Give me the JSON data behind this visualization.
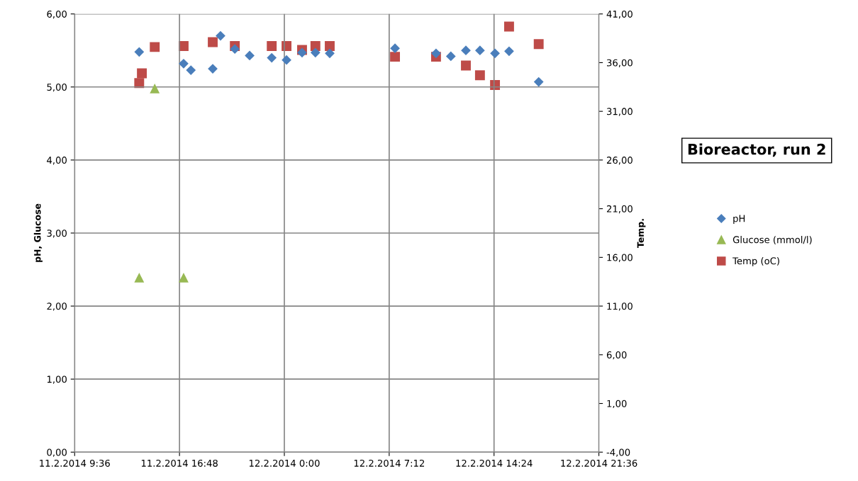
{
  "chart_data": {
    "type": "scatter",
    "title": "Bioreactor, run 2",
    "ylabel": "pH, Glucose",
    "y2label": "Temp.",
    "grid": true,
    "legend": "right",
    "xlim": [
      "2014-02-11T09:36",
      "2014-02-12T21:36"
    ],
    "xticks": [
      {
        "value": "2014-02-11T09:36",
        "label": "11.2.2014 9:36"
      },
      {
        "value": "2014-02-11T16:48",
        "label": "11.2.2014 16:48"
      },
      {
        "value": "2014-02-12T00:00",
        "label": "12.2.2014 0:00"
      },
      {
        "value": "2014-02-12T07:12",
        "label": "12.2.2014 7:12"
      },
      {
        "value": "2014-02-12T14:24",
        "label": "12.2.2014 14:24"
      },
      {
        "value": "2014-02-12T21:36",
        "label": "12.2.2014 21:36"
      }
    ],
    "ylim": [
      0,
      6
    ],
    "yticks": [
      {
        "value": 0,
        "label": "0,00"
      },
      {
        "value": 1,
        "label": "1,00"
      },
      {
        "value": 2,
        "label": "2,00"
      },
      {
        "value": 3,
        "label": "3,00"
      },
      {
        "value": 4,
        "label": "4,00"
      },
      {
        "value": 5,
        "label": "5,00"
      },
      {
        "value": 6,
        "label": "6,00"
      }
    ],
    "y2lim": [
      -4,
      41
    ],
    "y2ticks": [
      {
        "value": -4,
        "label": "-4,00"
      },
      {
        "value": 1,
        "label": "1,00"
      },
      {
        "value": 6,
        "label": "6,00"
      },
      {
        "value": 11,
        "label": "11,00"
      },
      {
        "value": 16,
        "label": "16,00"
      },
      {
        "value": 21,
        "label": "21,00"
      },
      {
        "value": 26,
        "label": "26,00"
      },
      {
        "value": 31,
        "label": "31,00"
      },
      {
        "value": 36,
        "label": "36,00"
      },
      {
        "value": 41,
        "label": "41,00"
      }
    ],
    "series": [
      {
        "name": "pH",
        "color": "#4a7ebb",
        "marker": "diamond",
        "x": [
          "2014-02-11T14:02",
          "2014-02-11T17:05",
          "2014-02-11T17:35",
          "2014-02-11T19:05",
          "2014-02-11T19:37",
          "2014-02-11T20:36",
          "2014-02-11T21:37",
          "2014-02-11T23:08",
          "2014-02-12T00:09",
          "2014-02-12T01:13",
          "2014-02-12T02:08",
          "2014-02-12T03:07",
          "2014-02-12T07:36",
          "2014-02-12T10:25",
          "2014-02-12T11:26",
          "2014-02-12T12:28",
          "2014-02-12T13:26",
          "2014-02-12T14:28",
          "2014-02-12T15:26",
          "2014-02-12T17:28"
        ],
        "values": [
          5.48,
          5.32,
          5.23,
          5.25,
          5.7,
          5.52,
          5.43,
          5.4,
          5.37,
          5.47,
          5.47,
          5.46,
          5.53,
          5.46,
          5.42,
          5.5,
          5.5,
          5.46,
          5.49,
          5.07
        ]
      },
      {
        "name": "Glucose (mmol/l)",
        "color": "#98b954",
        "marker": "triangle",
        "x": [
          "2014-02-11T14:02",
          "2014-02-11T15:06",
          "2014-02-11T17:05"
        ],
        "values": [
          2.39,
          4.98,
          2.39
        ]
      },
      {
        "name": "Temp (oC)",
        "color": "#be4b48",
        "marker": "square",
        "axis": "y2",
        "x": [
          "2014-02-11T14:02",
          "2014-02-11T14:13",
          "2014-02-11T15:06",
          "2014-02-11T17:05",
          "2014-02-11T19:05",
          "2014-02-11T20:36",
          "2014-02-11T23:08",
          "2014-02-12T00:09",
          "2014-02-12T01:13",
          "2014-02-12T02:08",
          "2014-02-12T03:07",
          "2014-02-12T07:36",
          "2014-02-12T10:25",
          "2014-02-12T12:28",
          "2014-02-12T13:26",
          "2014-02-12T14:28",
          "2014-02-12T15:26",
          "2014-02-12T17:28"
        ],
        "values": [
          33.9,
          34.9,
          37.6,
          37.7,
          38.1,
          37.7,
          37.7,
          37.7,
          37.3,
          37.7,
          37.7,
          36.6,
          36.6,
          35.7,
          34.7,
          33.7,
          39.7,
          37.9
        ]
      }
    ]
  }
}
